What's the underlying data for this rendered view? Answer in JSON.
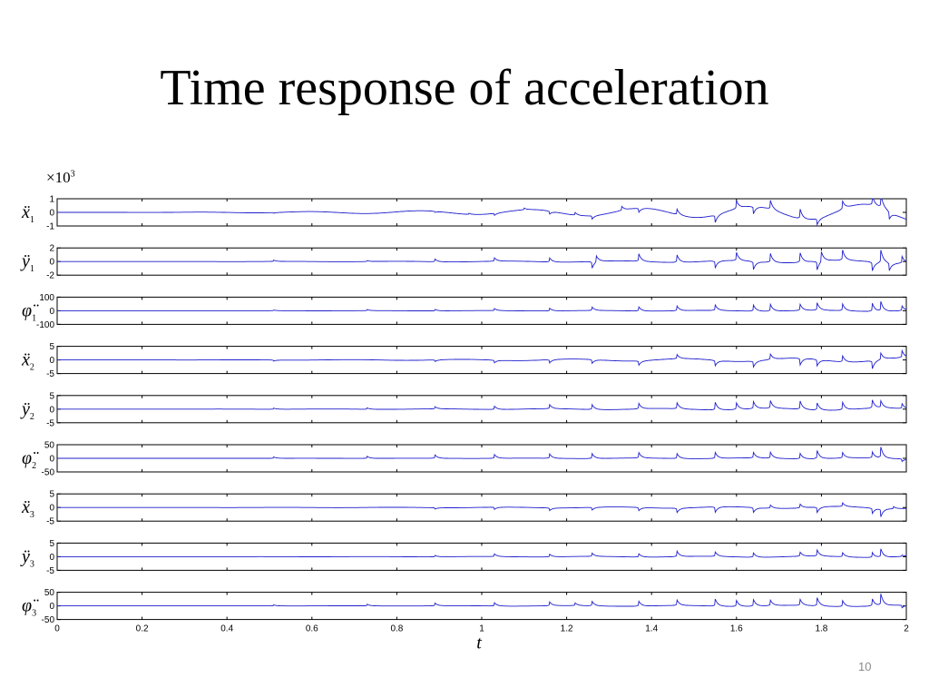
{
  "slide": {
    "title": "Time response of acceleration",
    "page_number": "10",
    "scale_note": {
      "prefix": "×10",
      "exponent": "3"
    }
  },
  "chart_data": {
    "type": "line",
    "title": "",
    "xlabel": "t",
    "xlim": [
      0,
      2
    ],
    "xticks": [
      "0",
      "0.2",
      "0.4",
      "0.6",
      "0.8",
      "1",
      "1.2",
      "1.4",
      "1.6",
      "1.8",
      "2"
    ],
    "line_color": "#1f1fcc",
    "grid": false,
    "legend": "none",
    "series": [
      {
        "label": "ẍ1",
        "ylim": [
          -1,
          1
        ],
        "yticks": [
          "1",
          "0",
          "-1"
        ],
        "growth": 1.1,
        "spikes": [
          [
            0.51,
            -0.05
          ],
          [
            0.89,
            -0.08
          ],
          [
            0.97,
            0.08
          ],
          [
            1.03,
            -0.15
          ],
          [
            1.1,
            0.12
          ],
          [
            1.16,
            -0.22
          ],
          [
            1.22,
            0.2
          ],
          [
            1.26,
            -0.25
          ],
          [
            1.33,
            0.3
          ],
          [
            1.37,
            -0.3
          ],
          [
            1.46,
            0.4
          ],
          [
            1.55,
            -0.55
          ],
          [
            1.6,
            0.6
          ],
          [
            1.64,
            -0.55
          ],
          [
            1.68,
            0.65
          ],
          [
            1.75,
            0.7
          ],
          [
            1.79,
            -0.45
          ],
          [
            1.85,
            0.6
          ],
          [
            1.92,
            0.7
          ],
          [
            1.94,
            0.95
          ],
          [
            1.96,
            -0.6
          ]
        ]
      },
      {
        "label": "ÿ1",
        "ylim": [
          -2,
          2
        ],
        "yticks": [
          "2",
          "0",
          "-2"
        ],
        "growth": 0.4,
        "spikes": [
          [
            0.51,
            0.2
          ],
          [
            0.73,
            0.15
          ],
          [
            0.89,
            0.4
          ],
          [
            1.03,
            0.5
          ],
          [
            1.16,
            0.6
          ],
          [
            1.26,
            -1.0
          ],
          [
            1.27,
            1.0
          ],
          [
            1.37,
            1.1
          ],
          [
            1.46,
            1.1
          ],
          [
            1.55,
            -1.0
          ],
          [
            1.6,
            1.2
          ],
          [
            1.64,
            -1.2
          ],
          [
            1.68,
            1.3
          ],
          [
            1.75,
            1.4
          ],
          [
            1.79,
            -1.3
          ],
          [
            1.8,
            1.6
          ],
          [
            1.85,
            1.5
          ],
          [
            1.92,
            -1.3
          ],
          [
            1.94,
            1.9
          ],
          [
            1.96,
            -1.2
          ],
          [
            1.99,
            1.0
          ]
        ]
      },
      {
        "label": "φ̈1",
        "ylim": [
          -100,
          100
        ],
        "yticks": [
          "100",
          "0",
          "-100"
        ],
        "growth": 8,
        "spikes": [
          [
            0.51,
            5
          ],
          [
            0.73,
            8
          ],
          [
            0.89,
            10
          ],
          [
            1.03,
            15
          ],
          [
            1.16,
            20
          ],
          [
            1.26,
            25
          ],
          [
            1.37,
            30
          ],
          [
            1.46,
            35
          ],
          [
            1.55,
            40
          ],
          [
            1.64,
            45
          ],
          [
            1.68,
            50
          ],
          [
            1.75,
            45
          ],
          [
            1.79,
            55
          ],
          [
            1.85,
            50
          ],
          [
            1.92,
            60
          ],
          [
            1.94,
            70
          ],
          [
            1.99,
            35
          ]
        ]
      },
      {
        "label": "ẍ2",
        "ylim": [
          -5,
          5
        ],
        "yticks": [
          "5",
          "0",
          "-5"
        ],
        "growth": 1.5,
        "spikes": [
          [
            0.51,
            -0.4
          ],
          [
            0.89,
            -0.6
          ],
          [
            1.03,
            -1.0
          ],
          [
            1.16,
            -1.2
          ],
          [
            1.26,
            -1.4
          ],
          [
            1.37,
            -1.6
          ],
          [
            1.46,
            1.5
          ],
          [
            1.55,
            -2.0
          ],
          [
            1.64,
            -2.2
          ],
          [
            1.68,
            2.0
          ],
          [
            1.75,
            -2.5
          ],
          [
            1.79,
            -2.4
          ],
          [
            1.85,
            2.2
          ],
          [
            1.92,
            -3.0
          ],
          [
            1.94,
            2.5
          ],
          [
            1.99,
            2.5
          ]
        ]
      },
      {
        "label": "ÿ2",
        "ylim": [
          -5,
          5
        ],
        "yticks": [
          "5",
          "0",
          "-5"
        ],
        "growth": 0.8,
        "spikes": [
          [
            0.51,
            0.4
          ],
          [
            0.73,
            0.5
          ],
          [
            0.89,
            0.8
          ],
          [
            1.03,
            1.2
          ],
          [
            1.16,
            1.5
          ],
          [
            1.26,
            1.8
          ],
          [
            1.37,
            2.0
          ],
          [
            1.46,
            2.2
          ],
          [
            1.55,
            2.8
          ],
          [
            1.6,
            2.4
          ],
          [
            1.64,
            2.6
          ],
          [
            1.68,
            2.8
          ],
          [
            1.75,
            3.0
          ],
          [
            1.79,
            2.6
          ],
          [
            1.85,
            2.8
          ],
          [
            1.92,
            3.0
          ],
          [
            1.94,
            2.5
          ],
          [
            1.99,
            1.8
          ]
        ]
      },
      {
        "label": "φ̈2",
        "ylim": [
          -50,
          50
        ],
        "yticks": [
          "50",
          "0",
          "-50"
        ],
        "growth": 4,
        "spikes": [
          [
            0.51,
            5
          ],
          [
            0.73,
            8
          ],
          [
            0.89,
            12
          ],
          [
            1.03,
            14
          ],
          [
            1.16,
            16
          ],
          [
            1.26,
            18
          ],
          [
            1.37,
            20
          ],
          [
            1.46,
            18
          ],
          [
            1.55,
            22
          ],
          [
            1.64,
            20
          ],
          [
            1.68,
            22
          ],
          [
            1.75,
            20
          ],
          [
            1.79,
            30
          ],
          [
            1.85,
            20
          ],
          [
            1.92,
            22
          ],
          [
            1.94,
            40
          ],
          [
            1.99,
            -10
          ]
        ]
      },
      {
        "label": "ẍ3",
        "ylim": [
          -5,
          5
        ],
        "yticks": [
          "5",
          "0",
          "-5"
        ],
        "growth": 0.8,
        "spikes": [
          [
            0.89,
            -0.5
          ],
          [
            1.03,
            -0.8
          ],
          [
            1.16,
            -1.0
          ],
          [
            1.26,
            -1.0
          ],
          [
            1.37,
            -1.2
          ],
          [
            1.46,
            -1.6
          ],
          [
            1.55,
            -2.0
          ],
          [
            1.64,
            -1.8
          ],
          [
            1.68,
            1.2
          ],
          [
            1.75,
            1.4
          ],
          [
            1.79,
            -2.0
          ],
          [
            1.85,
            1.3
          ],
          [
            1.92,
            -2.0
          ],
          [
            1.94,
            -3.0
          ],
          [
            1.97,
            0.8
          ]
        ]
      },
      {
        "label": "ÿ3",
        "ylim": [
          -5,
          5
        ],
        "yticks": [
          "5",
          "0",
          "-5"
        ],
        "growth": 0.5,
        "spikes": [
          [
            0.89,
            0.5
          ],
          [
            1.03,
            1.0
          ],
          [
            1.16,
            1.0
          ],
          [
            1.26,
            1.2
          ],
          [
            1.37,
            1.2
          ],
          [
            1.46,
            2.0
          ],
          [
            1.55,
            1.6
          ],
          [
            1.64,
            1.6
          ],
          [
            1.75,
            1.5
          ],
          [
            1.79,
            2.2
          ],
          [
            1.85,
            1.5
          ],
          [
            1.92,
            1.8
          ],
          [
            1.94,
            3.0
          ],
          [
            1.99,
            0.5
          ]
        ]
      },
      {
        "label": "φ̈3",
        "ylim": [
          -50,
          50
        ],
        "yticks": [
          "50",
          "0",
          "-50"
        ],
        "growth": 5,
        "spikes": [
          [
            0.51,
            4
          ],
          [
            0.73,
            6
          ],
          [
            0.89,
            10
          ],
          [
            1.03,
            12
          ],
          [
            1.16,
            14
          ],
          [
            1.22,
            10
          ],
          [
            1.26,
            16
          ],
          [
            1.37,
            18
          ],
          [
            1.46,
            20
          ],
          [
            1.55,
            26
          ],
          [
            1.6,
            22
          ],
          [
            1.64,
            24
          ],
          [
            1.68,
            20
          ],
          [
            1.75,
            22
          ],
          [
            1.79,
            30
          ],
          [
            1.85,
            22
          ],
          [
            1.92,
            26
          ],
          [
            1.94,
            42
          ],
          [
            1.99,
            -10
          ]
        ]
      }
    ]
  }
}
